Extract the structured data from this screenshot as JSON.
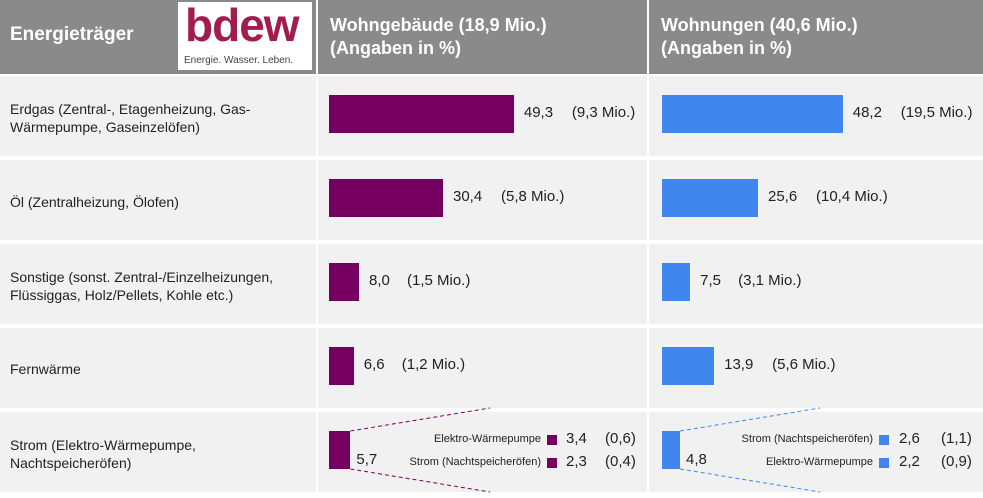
{
  "header": {
    "col1_title": "Energieträger",
    "logo_word": "bdew",
    "logo_tagline": "Energie. Wasser. Leben.",
    "col2_line1": "Wohngebäude (18,9 Mio.)",
    "col2_line2": "(Angaben in %)",
    "col3_line1": "Wohnungen (40,6 Mio.)",
    "col3_line2": "(Angaben in %)"
  },
  "colors": {
    "wohngebaeude": "#75005f",
    "wohnungen": "#3f86ef",
    "header": "#8a8a8a"
  },
  "chart_data": {
    "type": "bar",
    "categories": [
      "Erdgas (Zentral-,  Etagenheizung,  Gas-Wärmepumpe,  Gaseinzelöfen)",
      "Öl (Zentralheizung,  Ölofen)",
      "Sonstige (sonst. Zentral-/Einzelheizungen, Flüssiggas, Holz/Pellets, Kohle etc.)",
      "Fernwärme",
      "Strom (Elektro-Wärmepumpe, Nachtspeicheröfen)"
    ],
    "series": [
      {
        "name": "Wohngebäude (18,9 Mio.)",
        "values": [
          49.3,
          30.4,
          8.0,
          6.6,
          5.7
        ],
        "value_labels": [
          "49,3",
          "30,4",
          "8,0",
          "6,6",
          "5,7"
        ],
        "abs_labels": [
          "(9,3 Mio.)",
          "(5,8 Mio.)",
          "(1,5 Mio.)",
          "(1,2 Mio.)",
          ""
        ],
        "strom_breakdown": [
          {
            "name": "Elektro-Wärmepumpe",
            "value": 3.4,
            "value_label": "3,4",
            "abs_label": "(0,6)"
          },
          {
            "name": "Strom (Nachtspeicheröfen)",
            "value": 2.3,
            "value_label": "2,3",
            "abs_label": "(0,4)"
          }
        ]
      },
      {
        "name": "Wohnungen (40,6 Mio.)",
        "values": [
          48.2,
          25.6,
          7.5,
          13.9,
          4.8
        ],
        "value_labels": [
          "48,2",
          "25,6",
          "7,5",
          "13,9",
          "4,8"
        ],
        "abs_labels": [
          "(19,5 Mio.)",
          "(10,4 Mio.)",
          "(3,1 Mio.)",
          "(5,6 Mio.)",
          ""
        ],
        "strom_breakdown": [
          {
            "name": "Strom (Nachtspeicheröfen)",
            "value": 2.6,
            "value_label": "2,6",
            "abs_label": "(1,1)"
          },
          {
            "name": "Elektro-Wärmepumpe",
            "value": 2.2,
            "value_label": "2,2",
            "abs_label": "(0,9)"
          }
        ]
      }
    ]
  }
}
